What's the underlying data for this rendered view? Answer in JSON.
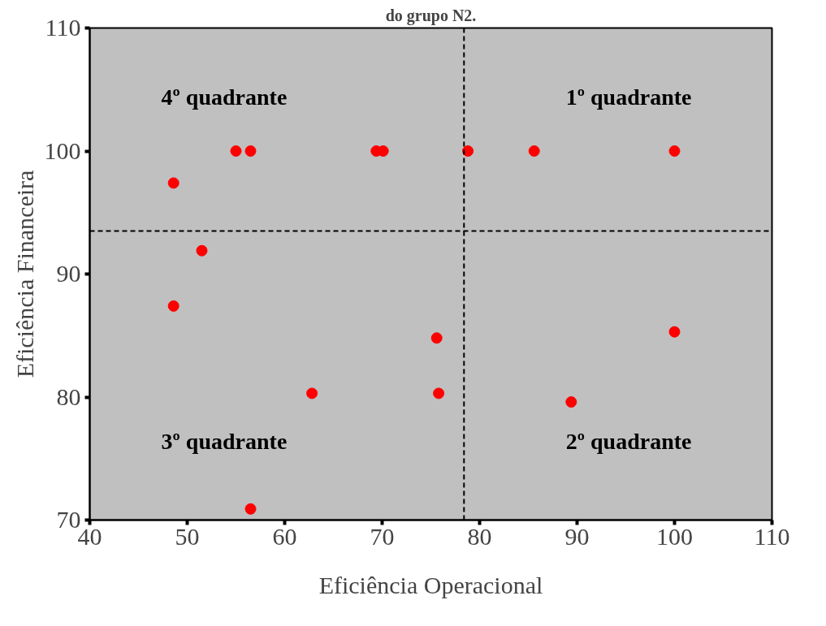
{
  "chart_data": {
    "type": "scatter",
    "title": "do grupo N2.",
    "xlabel": "Eficiência Operacional",
    "ylabel": "Eficiência Financeira",
    "x": [
      48.6,
      55.0,
      56.5,
      69.4,
      70.1,
      78.8,
      85.6,
      100,
      51.5,
      48.6,
      75.6,
      62.8,
      75.8,
      100,
      89.4,
      56.5
    ],
    "series": [
      {
        "color": "#ff0000",
        "values": [
          97.4,
          100,
          100,
          100,
          100,
          100,
          100,
          100,
          91.9,
          87.4,
          84.8,
          80.3,
          80.3,
          85.3,
          79.6,
          70.9
        ]
      }
    ],
    "marker": "circle",
    "xlim": [
      40,
      110
    ],
    "ylim": [
      70,
      110
    ],
    "xticks": [
      40,
      50,
      60,
      70,
      80,
      90,
      100,
      110
    ],
    "yticks": [
      70,
      80,
      90,
      100,
      110
    ],
    "ref_lines": [
      {
        "axis": "x",
        "value": 78.4,
        "color": "#000000",
        "line_style": "dashed"
      },
      {
        "axis": "y",
        "value": 93.5,
        "color": "#000000",
        "line_style": "dashed"
      }
    ],
    "annotations": [
      "4º quadrante",
      "1º quadrante",
      "3º quadrante",
      "2º quadrante"
    ]
  }
}
